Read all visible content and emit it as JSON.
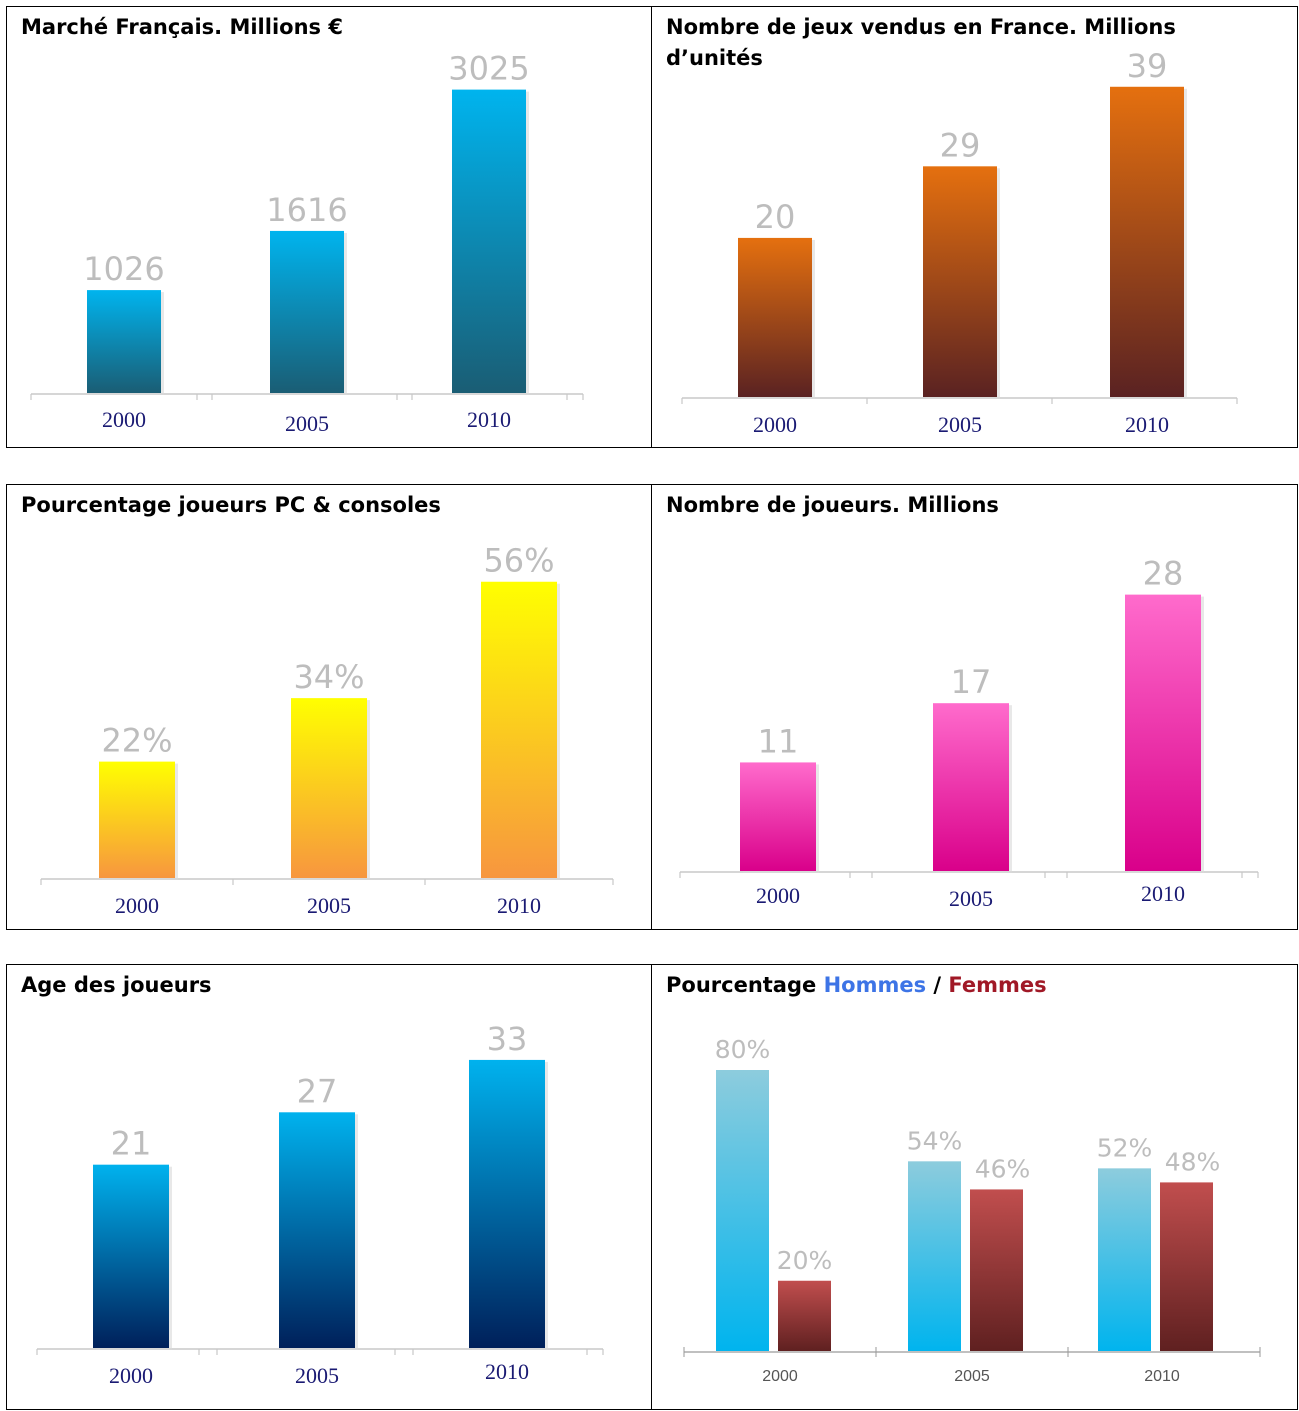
{
  "colors": {
    "blue": [
      "#00b4ee",
      "#1a5d74"
    ],
    "orange": [
      "#e5700f",
      "#5a2222"
    ],
    "yellow": [
      "#ffff00",
      "#f7963f"
    ],
    "pink": [
      "#ff6bcc",
      "#d9008a"
    ],
    "navy": [
      "#00b2ee",
      "#00205a"
    ],
    "men": [
      "#8dccdd",
      "#00b4ee"
    ],
    "women": [
      "#c14e4e",
      "#5f2020"
    ]
  },
  "chart_data": [
    {
      "type": "bar",
      "title": "Marché Français. Millions €",
      "categories": [
        "2000",
        "2005",
        "2010"
      ],
      "values": [
        1026,
        1616,
        3025
      ],
      "value_labels": [
        "1026",
        "1616",
        "3025"
      ],
      "ylim": [
        0,
        3400
      ],
      "color": "blue"
    },
    {
      "type": "bar",
      "title": "Nombre de jeux vendus en France. Millions d’unités",
      "categories": [
        "2000",
        "2005",
        "2010"
      ],
      "values": [
        20,
        29,
        39
      ],
      "value_labels": [
        "20",
        "29",
        "39"
      ],
      "ylim": [
        0,
        44
      ],
      "color": "orange"
    },
    {
      "type": "bar",
      "title": "Pourcentage joueurs PC & consoles",
      "categories": [
        "2000",
        "2005",
        "2010"
      ],
      "values": [
        22,
        34,
        56
      ],
      "value_labels": [
        "22%",
        "34%",
        "56%"
      ],
      "ylim": [
        0,
        62
      ],
      "color": "yellow"
    },
    {
      "type": "bar",
      "title": "Nombre de joueurs. Millions",
      "categories": [
        "2000",
        "2005",
        "2010"
      ],
      "values": [
        11,
        17,
        28
      ],
      "value_labels": [
        "11",
        "17",
        "28"
      ],
      "ylim": [
        0,
        31
      ],
      "color": "pink"
    },
    {
      "type": "bar",
      "title": "Age des joueurs",
      "categories": [
        "2000",
        "2005",
        "2010"
      ],
      "values": [
        21,
        27,
        33
      ],
      "value_labels": [
        "21",
        "27",
        "33"
      ],
      "ylim": [
        0,
        37
      ],
      "color": "navy"
    },
    {
      "type": "bar",
      "title_parts": [
        "Pourcentage ",
        "Hommes",
        " / ",
        "Femmes"
      ],
      "categories": [
        "2000",
        "2005",
        "2010"
      ],
      "series": [
        {
          "name": "Hommes",
          "values": [
            80,
            54,
            52
          ],
          "value_labels": [
            "80%",
            "54%",
            "52%"
          ],
          "color": "men"
        },
        {
          "name": "Femmes",
          "values": [
            20,
            46,
            48
          ],
          "value_labels": [
            "20%",
            "46%",
            "48%"
          ],
          "color": "women"
        }
      ],
      "ylim": [
        0,
        100
      ]
    }
  ]
}
